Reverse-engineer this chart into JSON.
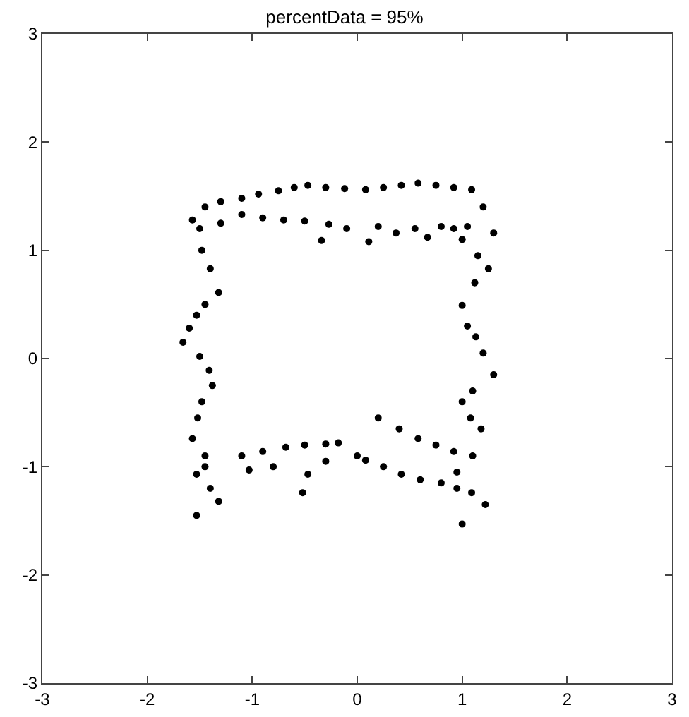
{
  "chart_data": {
    "type": "scatter",
    "title": "percentData = 95%",
    "x": [
      -1.57,
      -1.45,
      -1.3,
      -1.1,
      -0.94,
      -0.75,
      -0.6,
      -0.47,
      -0.3,
      -0.12,
      0.08,
      0.25,
      0.42,
      0.58,
      0.75,
      0.92,
      1.09,
      1.2,
      1.3,
      -1.5,
      -1.3,
      -1.1,
      -0.9,
      -0.7,
      -0.5,
      -0.34,
      -0.27,
      -0.1,
      0.11,
      0.2,
      0.37,
      0.55,
      0.67,
      0.8,
      0.92,
      1.05,
      -1.48,
      -1.4,
      -1.32,
      -1.45,
      -1.53,
      -1.6,
      -1.66,
      -1.5,
      -1.41,
      -1.38,
      -1.48,
      -1.52,
      -1.57,
      -1.45,
      -1.53,
      -1.4,
      -1.53,
      -1.32,
      -1.45,
      -1.1,
      -0.9,
      -0.68,
      -0.5,
      -0.3,
      -0.18,
      0.08,
      0.25,
      0.42,
      0.6,
      0.8,
      0.95,
      1.09,
      1.0,
      -1.03,
      -0.8,
      -0.47,
      -0.52,
      -0.3,
      0.0,
      0.2,
      0.4,
      0.58,
      0.75,
      0.92,
      1.0,
      1.15,
      1.25,
      1.12,
      1.0,
      1.05,
      1.13,
      1.2,
      1.3,
      1.1,
      1.0,
      1.08,
      1.18,
      1.1,
      0.95,
      1.22
    ],
    "values": [
      1.28,
      1.4,
      1.45,
      1.48,
      1.52,
      1.55,
      1.58,
      1.6,
      1.58,
      1.57,
      1.56,
      1.58,
      1.6,
      1.62,
      1.6,
      1.58,
      1.56,
      1.4,
      1.16,
      1.2,
      1.25,
      1.33,
      1.3,
      1.28,
      1.27,
      1.09,
      1.24,
      1.2,
      1.08,
      1.22,
      1.16,
      1.2,
      1.12,
      1.22,
      1.2,
      1.22,
      1.0,
      0.83,
      0.61,
      0.5,
      0.4,
      0.28,
      0.15,
      0.02,
      -0.11,
      -0.25,
      -0.4,
      -0.55,
      -0.74,
      -0.9,
      -1.07,
      -1.2,
      -1.45,
      -1.32,
      -1.0,
      -0.9,
      -0.86,
      -0.82,
      -0.8,
      -0.79,
      -0.78,
      -0.94,
      -1.0,
      -1.07,
      -1.12,
      -1.15,
      -1.2,
      -1.24,
      -1.53,
      -1.03,
      -1.0,
      -1.07,
      -1.24,
      -0.95,
      -0.9,
      -0.55,
      -0.65,
      -0.74,
      -0.8,
      -0.86,
      1.1,
      0.95,
      0.83,
      0.7,
      0.49,
      0.3,
      0.2,
      0.05,
      -0.15,
      -0.3,
      -0.4,
      -0.55,
      -0.65,
      -0.9,
      -1.05,
      -1.35
    ],
    "color": "#000000",
    "marker": "circle",
    "xlim": [
      -3,
      3
    ],
    "xticks": [
      -3,
      -2,
      -1,
      0,
      1,
      2,
      3
    ],
    "ylim": [
      -3,
      3
    ],
    "yticks": [
      -3,
      -2,
      -1,
      0,
      1,
      2,
      3
    ],
    "grid": false
  }
}
